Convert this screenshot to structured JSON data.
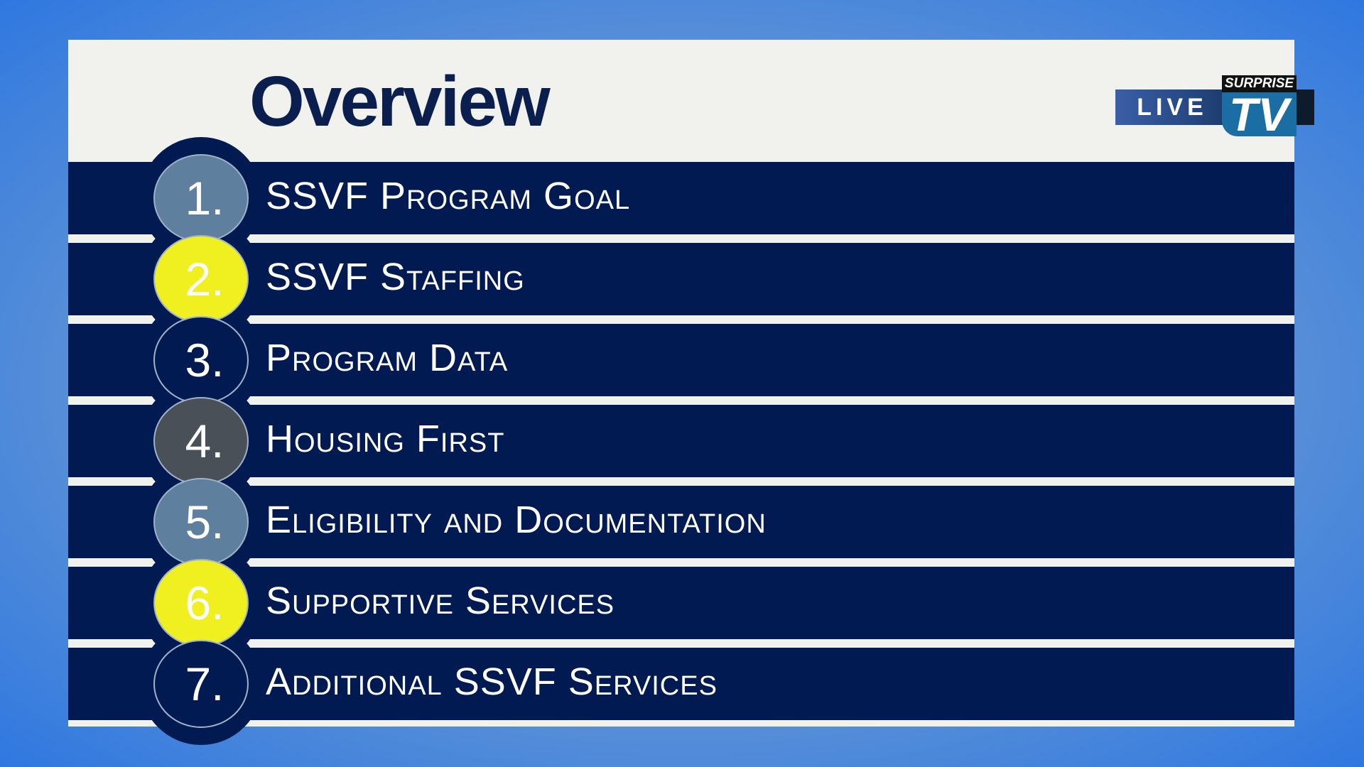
{
  "slide": {
    "title": "Overview"
  },
  "items": [
    {
      "number": "1.",
      "label": "SSVF Program Goal",
      "color": "#5f7f9f"
    },
    {
      "number": "2.",
      "label": "SSVF Staffing",
      "color": "#f0f020"
    },
    {
      "number": "3.",
      "label": "Program Data",
      "color": "#021a52"
    },
    {
      "number": "4.",
      "label": "Housing First",
      "color": "#4a5058"
    },
    {
      "number": "5.",
      "label": "Eligibility and Documentation",
      "color": "#5f7f9f"
    },
    {
      "number": "6.",
      "label": "Supportive Services",
      "color": "#f0f020"
    },
    {
      "number": "7.",
      "label": "Additional SSVF Services",
      "color": "#021a52"
    }
  ],
  "logo": {
    "live": "LIVE",
    "brand_top": "SURPRISE",
    "brand_bottom": "TV"
  }
}
